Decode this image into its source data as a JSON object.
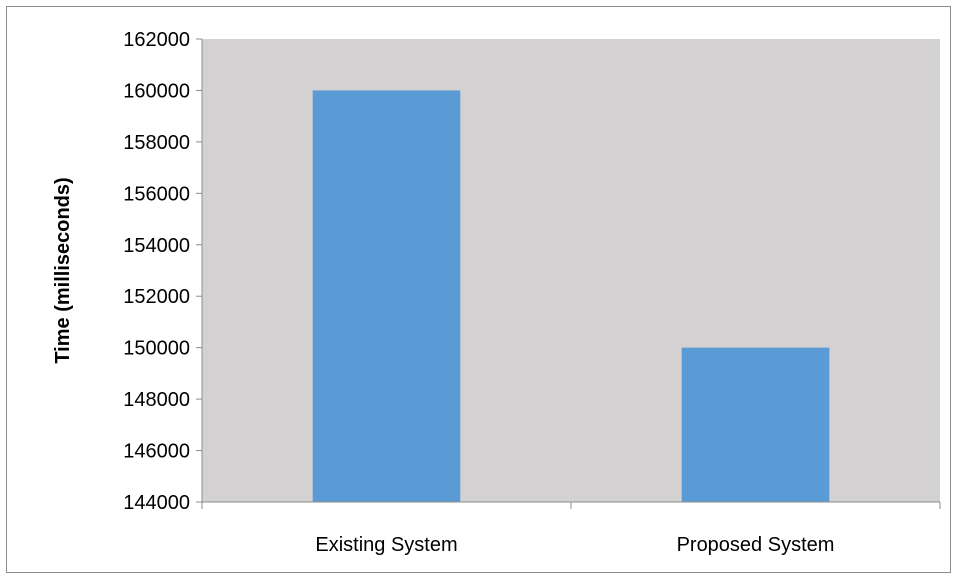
{
  "chart_data": {
    "type": "bar",
    "categories": [
      "Existing System",
      "Proposed System"
    ],
    "values": [
      160000,
      150000
    ],
    "title": "",
    "xlabel": "",
    "ylabel": "Time (milliseconds)",
    "ylim": [
      144000,
      162000
    ],
    "yticks": [
      144000,
      146000,
      148000,
      150000,
      152000,
      154000,
      156000,
      158000,
      160000,
      162000
    ],
    "grid": false,
    "legend": "none",
    "colors": {
      "bar": "#5b9bd5",
      "plot_background": "#d3d1d2",
      "axis": "#8c8c8c"
    }
  }
}
